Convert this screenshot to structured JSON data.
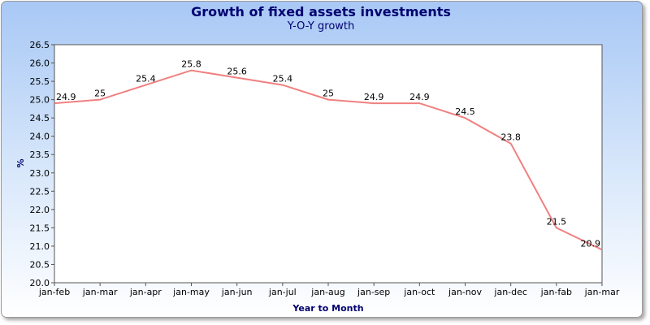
{
  "chart_data": {
    "type": "line",
    "title": "Growth of fixed assets investments",
    "subtitle": "Y-O-Y growth",
    "xlabel": "Year to Month",
    "ylabel": "%",
    "categories": [
      "jan-feb",
      "jan-mar",
      "jan-apr",
      "jan-may",
      "jan-jun",
      "jan-jul",
      "jan-aug",
      "jan-sep",
      "jan-oct",
      "jan-nov",
      "jan-dec",
      "jan-fab",
      "jan-mar"
    ],
    "series": [
      {
        "values": [
          24.9,
          25,
          25.4,
          25.8,
          25.6,
          25.4,
          25,
          24.9,
          24.9,
          24.5,
          23.8,
          21.5,
          20.9
        ]
      }
    ],
    "data_labels": [
      "24.9",
      "25",
      "25.4",
      "25.8",
      "25.6",
      "25.4",
      "25",
      "24.9",
      "24.9",
      "24.5",
      "23.8",
      "21.5",
      "20.9"
    ],
    "ylim": [
      20.0,
      26.5
    ],
    "yticks": [
      "20.0",
      "20.5",
      "21.0",
      "21.5",
      "22.0",
      "22.5",
      "23.0",
      "23.5",
      "24.0",
      "24.5",
      "25.0",
      "25.5",
      "26.0",
      "26.5"
    ],
    "grid": false,
    "legend": "none",
    "line_color": "#f08080",
    "title_color": "#000070"
  }
}
